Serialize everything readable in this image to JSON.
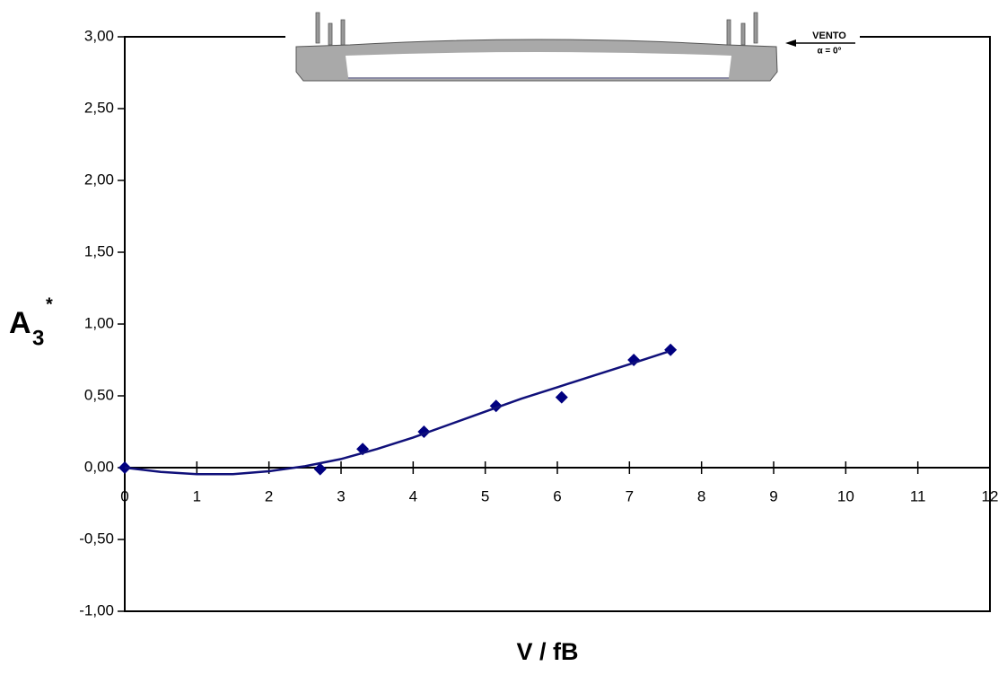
{
  "chart_data": {
    "type": "scatter",
    "x_label": "V / fB",
    "y_label": "A",
    "y_label_sub": "3",
    "y_label_sup": "*",
    "annotations": [
      "VENTO",
      "α = 0°"
    ],
    "xlim": [
      0,
      12
    ],
    "xticks": [
      0,
      1,
      2,
      3,
      4,
      5,
      6,
      7,
      8,
      9,
      10,
      11,
      12
    ],
    "ylim": [
      -1,
      3
    ],
    "yticks": [
      {
        "value": -1,
        "label": "-1,00"
      },
      {
        "value": -0.5,
        "label": "-0,50"
      },
      {
        "value": 0,
        "label": "0,00"
      },
      {
        "value": 0.5,
        "label": "0,50"
      },
      {
        "value": 1,
        "label": "1,00"
      },
      {
        "value": 1.5,
        "label": "1,50"
      },
      {
        "value": 2,
        "label": "2,00"
      },
      {
        "value": 2.5,
        "label": "2,50"
      },
      {
        "value": 3,
        "label": "3,00"
      }
    ],
    "series": [
      {
        "color": "#000080",
        "marker": "diamond",
        "x": [
          0,
          2.71,
          3.3,
          4.15,
          5.15,
          6.06,
          7.06,
          7.57
        ],
        "values": [
          0,
          -0.01,
          0.13,
          0.25,
          0.43,
          0.49,
          0.75,
          0.82
        ]
      },
      {
        "color": "#10107a",
        "marker": "line",
        "x": [
          0,
          0.5,
          1,
          1.5,
          2,
          2.5,
          3,
          3.5,
          4,
          4.5,
          5,
          5.5,
          6,
          6.5,
          7,
          7.55
        ],
        "values": [
          0,
          -0.03,
          -0.045,
          -0.045,
          -0.025,
          0.01,
          0.06,
          0.13,
          0.21,
          0.3,
          0.39,
          0.48,
          0.56,
          0.64,
          0.72,
          0.81
        ]
      }
    ]
  }
}
